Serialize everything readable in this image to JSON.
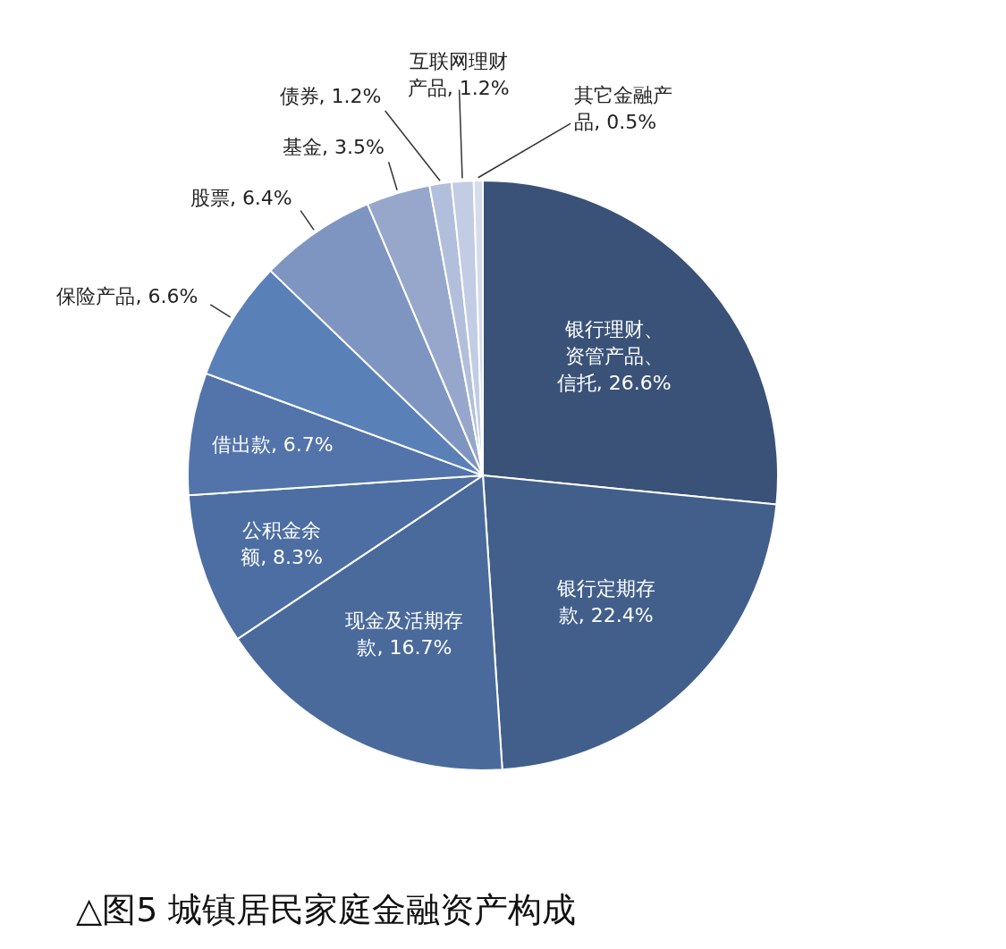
{
  "chart_data": {
    "type": "pie",
    "title": "△图5 城镇居民家庭金融资产构成",
    "categories": [
      "银行理财、资管产品、信托",
      "银行定期存款",
      "现金及活期存款",
      "公积金余额",
      "借出款",
      "保险产品",
      "股票",
      "基金",
      "债券",
      "互联网理财产品",
      "其它金融产品"
    ],
    "values": [
      26.6,
      22.4,
      16.7,
      8.3,
      6.7,
      6.6,
      6.4,
      3.5,
      1.2,
      1.2,
      0.5
    ],
    "value_labels": [
      "26.6%",
      "22.4%",
      "16.7%",
      "8.3%",
      "6.7%",
      "6.6%",
      "6.4%",
      "3.5%",
      "1.2%",
      "1.2%",
      "0.5%"
    ],
    "colors": [
      "#3a5278",
      "#425f8c",
      "#4a6a9c",
      "#4c6ea2",
      "#5274ab",
      "#5a80b8",
      "#7f95c1",
      "#97a7cc",
      "#b2bfdc",
      "#c2cce4",
      "#d5dcee"
    ]
  }
}
